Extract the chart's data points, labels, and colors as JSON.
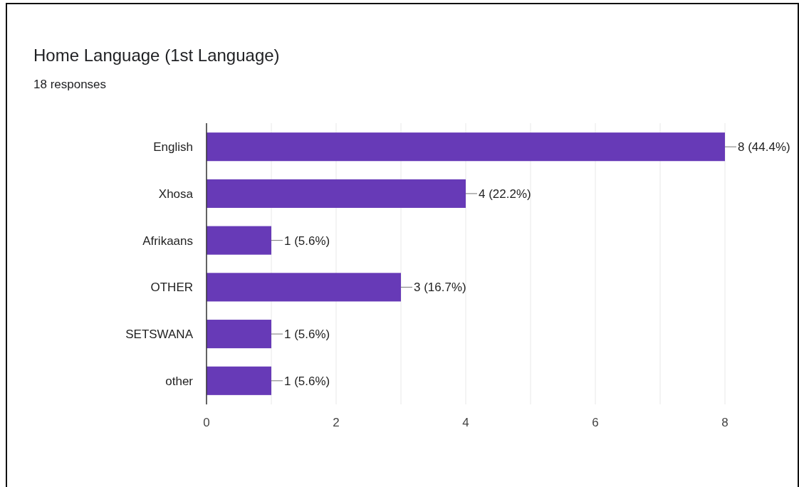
{
  "chart_data": {
    "type": "bar",
    "orientation": "horizontal",
    "title": "Home Language (1st Language)",
    "subtitle": "18 responses",
    "categories": [
      "English",
      "Xhosa",
      "Afrikaans",
      "OTHER",
      "SETSWANA",
      "other"
    ],
    "values": [
      8,
      4,
      1,
      3,
      1,
      1
    ],
    "value_labels": [
      "8 (44.4%)",
      "4 (22.2%)",
      "1 (5.6%)",
      "3 (16.7%)",
      "1 (5.6%)",
      "1 (5.6%)"
    ],
    "color": "#673ab7",
    "xlim": [
      0,
      8
    ],
    "xticks": [
      0,
      {
        "value": 1,
        "label": null
      },
      2,
      {
        "value": 3,
        "label": null
      },
      4,
      {
        "value": 5,
        "label": null
      },
      6,
      {
        "value": 7,
        "label": null
      },
      8
    ],
    "grid": "x"
  }
}
